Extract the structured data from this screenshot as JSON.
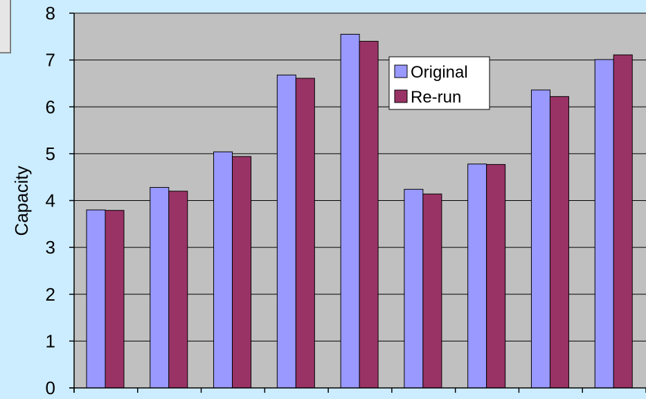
{
  "chart_data": {
    "type": "bar",
    "title": "",
    "xlabel": "",
    "ylabel": "Capacity",
    "ylim": [
      0,
      8
    ],
    "yticks": [
      "0",
      "1",
      "2",
      "3",
      "4",
      "5",
      "6",
      "7",
      "8"
    ],
    "categories": [
      "",
      "",
      "",
      "",
      "",
      "",
      "",
      "",
      ""
    ],
    "series": [
      {
        "name": "Original",
        "color": "#9999ff",
        "values": [
          3.8,
          4.28,
          5.04,
          6.68,
          7.55,
          4.24,
          4.78,
          6.36,
          7.01
        ]
      },
      {
        "name": "Re-run",
        "color": "#993366",
        "values": [
          3.79,
          4.2,
          4.94,
          6.61,
          7.4,
          4.14,
          4.77,
          6.22,
          7.11
        ]
      }
    ],
    "grid": true,
    "plot_background": "#c0c0c0",
    "legend_position": "top-right"
  }
}
